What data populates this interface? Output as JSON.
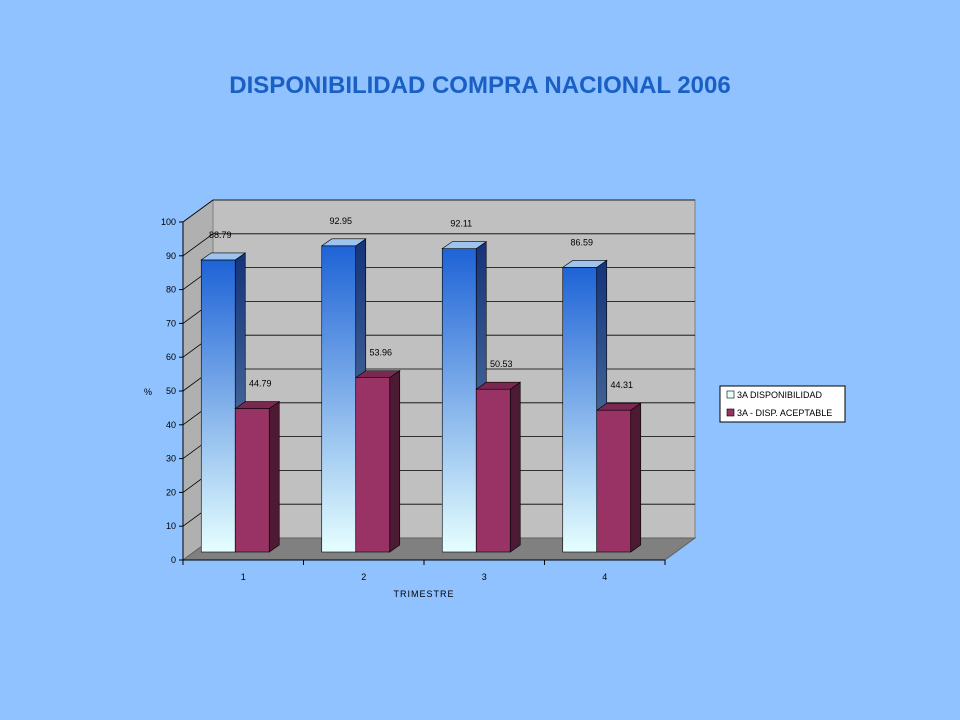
{
  "slide": {
    "title": "DISPONIBILIDAD COMPRA NACIONAL 2006",
    "background": "#8fc2ff",
    "title_color": "#1a5fc4"
  },
  "chart_data": {
    "type": "bar",
    "style": "3d-clustered-column",
    "title": "",
    "xlabel": "TRIMESTRE",
    "ylabel": "%",
    "categories": [
      "1",
      "2",
      "3",
      "4"
    ],
    "ylim": [
      0,
      100
    ],
    "yticks": [
      0,
      10,
      20,
      30,
      40,
      50,
      60,
      70,
      80,
      90,
      100
    ],
    "grid": true,
    "legend_position": "right",
    "series": [
      {
        "name": "3A DISPONIBILIDAD",
        "values": [
          88.79,
          92.95,
          92.11,
          86.59
        ],
        "labels": [
          "88.79",
          "92.95",
          "92.11",
          "86.59"
        ],
        "color_top": "#1e63d6",
        "color_bottom": "#e6ffff"
      },
      {
        "name": "3A - DISP. ACEPTABLE",
        "values": [
          44.79,
          53.96,
          50.53,
          44.31
        ],
        "labels": [
          "44.79",
          "53.96",
          "50.53",
          "44.31"
        ],
        "color": "#993366"
      }
    ],
    "colors": {
      "plot_wall": "#c0c0c0",
      "floor": "#808080",
      "gridline": "#000000"
    }
  }
}
